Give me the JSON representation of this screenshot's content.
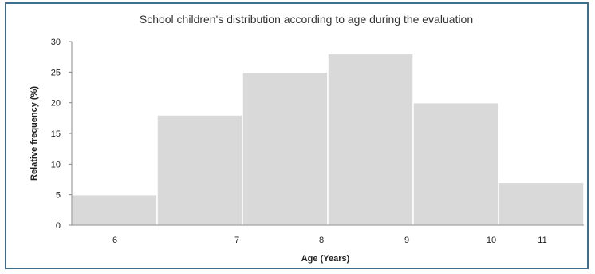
{
  "chart_data": {
    "type": "bar",
    "title": "School children's distribution according to age during the evaluation",
    "xlabel": "Age (Years)",
    "ylabel": "Relative frequency (%)",
    "ylim": [
      0,
      30
    ],
    "yticks": [
      "0",
      "5",
      "10",
      "15",
      "20",
      "25",
      "30"
    ],
    "xticks": [
      "6",
      "7",
      "8",
      "9",
      "10",
      "11"
    ],
    "bars": [
      {
        "age": "6",
        "value": 5
      },
      {
        "age": "7",
        "value": 18
      },
      {
        "age": "8",
        "value": 25
      },
      {
        "age": "9",
        "value": 28
      },
      {
        "age": "10",
        "value": 20
      },
      {
        "age": "11",
        "value": 7
      }
    ],
    "bar_color": "#d9d9d9",
    "grid": false,
    "legend": "none"
  }
}
